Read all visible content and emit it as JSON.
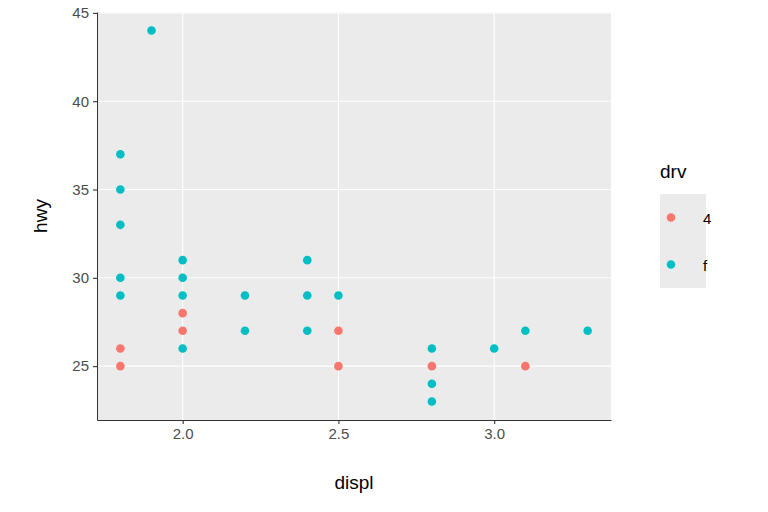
{
  "chart_data": {
    "type": "scatter",
    "x_label": "displ",
    "y_label": "hwy",
    "legend_title": "drv",
    "legend": "right",
    "grid": true,
    "marker": "circle",
    "xlim": [
      1.725,
      3.375
    ],
    "ylim": [
      21.95,
      45.05
    ],
    "xticks": [
      {
        "value": 2,
        "label": "2.0"
      },
      {
        "value": 2.5,
        "label": "2.5"
      },
      {
        "value": 3,
        "label": "3.0"
      }
    ],
    "yticks": [
      25,
      30,
      35,
      40,
      45
    ],
    "series": [
      {
        "name": "4",
        "color": "#F8766D",
        "x": [
          1.8,
          1.8,
          2.0,
          2.0,
          2.5,
          2.5,
          2.8,
          3.1
        ],
        "values": [
          26,
          25,
          28,
          27,
          27,
          25,
          25,
          25
        ]
      },
      {
        "name": "f",
        "color": "#00BFC4",
        "x": [
          1.9,
          1.8,
          1.8,
          1.8,
          1.8,
          1.8,
          2.0,
          2.0,
          2.0,
          2.0,
          2.2,
          2.2,
          2.4,
          2.4,
          2.4,
          2.5,
          2.8,
          2.8,
          2.8,
          3.0,
          3.1,
          3.3
        ],
        "values": [
          44,
          37,
          35,
          33,
          30,
          29,
          31,
          30,
          29,
          26,
          29,
          27,
          31,
          29,
          27,
          29,
          26,
          24,
          23,
          26,
          27,
          27
        ]
      }
    ]
  }
}
